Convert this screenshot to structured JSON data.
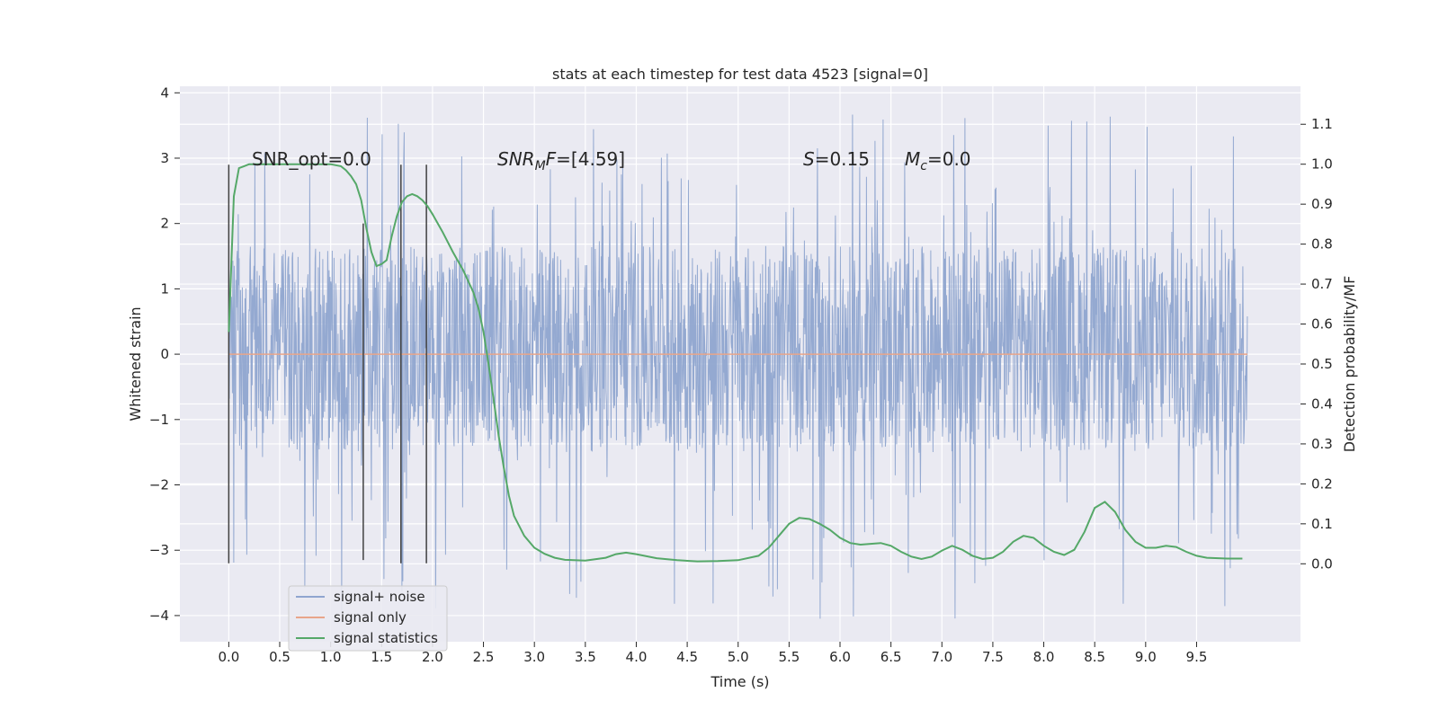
{
  "chart_data": {
    "type": "line",
    "title": "stats at each timestep for test data 4523 [signal=0]",
    "xlabel": "Time (s)",
    "ylabel": "Whitened strain",
    "y2label": "Detection probability/MF",
    "xlim": [
      -0.48,
      10.52
    ],
    "ylim": [
      -4.4,
      4.1
    ],
    "y2lim": [
      -0.195,
      1.195
    ],
    "x_ticks": [
      0.0,
      0.5,
      1.0,
      1.5,
      2.0,
      2.5,
      3.0,
      3.5,
      4.0,
      4.5,
      5.0,
      5.5,
      6.0,
      6.5,
      7.0,
      7.5,
      8.0,
      8.5,
      9.0,
      9.5
    ],
    "x_tick_labels": [
      "0.0",
      "0.5",
      "1.0",
      "1.5",
      "2.0",
      "2.5",
      "3.0",
      "3.5",
      "4.0",
      "4.5",
      "5.0",
      "5.5",
      "6.0",
      "6.5",
      "7.0",
      "7.5",
      "8.0",
      "8.5",
      "9.0",
      "9.5"
    ],
    "y_ticks": [
      -4,
      -3,
      -2,
      -1,
      0,
      1,
      2,
      3,
      4
    ],
    "y_tick_labels": [
      "−4",
      "−3",
      "−2",
      "−1",
      "0",
      "1",
      "2",
      "3",
      "4"
    ],
    "y2_ticks": [
      0.0,
      0.1,
      0.2,
      0.3,
      0.4,
      0.5,
      0.6,
      0.7,
      0.8,
      0.9,
      1.0,
      1.1
    ],
    "y2_tick_labels": [
      "0.0",
      "0.1",
      "0.2",
      "0.3",
      "0.4",
      "0.5",
      "0.6",
      "0.7",
      "0.8",
      "0.9",
      "1.0",
      "1.1"
    ],
    "grid": true,
    "legend_position": "lower-left",
    "noise": {
      "x_range": [
        0.0,
        10.0
      ],
      "band_low": -1.5,
      "band_high": 1.65,
      "spike_max": 3.7,
      "spike_min": -4.05
    },
    "series": [
      {
        "name": "signal+ noise",
        "axis": "left",
        "color": "#8fa5cf",
        "data": "whitened strain noise samples over 0.0 to 10.0 s"
      },
      {
        "name": "signal only",
        "axis": "left",
        "color": "#e8a58a",
        "x": [
          0.0,
          10.0
        ],
        "y": [
          0.0,
          0.0
        ]
      },
      {
        "name": "signal statistics",
        "axis": "right",
        "color": "#55a868",
        "x": [
          0.0,
          0.05,
          0.1,
          0.15,
          0.2,
          0.3,
          0.4,
          0.5,
          0.6,
          0.7,
          0.8,
          0.9,
          1.0,
          1.1,
          1.15,
          1.2,
          1.25,
          1.3,
          1.35,
          1.4,
          1.45,
          1.5,
          1.55,
          1.6,
          1.65,
          1.7,
          1.75,
          1.8,
          1.85,
          1.9,
          1.95,
          2.0,
          2.1,
          2.2,
          2.3,
          2.4,
          2.45,
          2.5,
          2.55,
          2.6,
          2.65,
          2.7,
          2.75,
          2.8,
          2.9,
          3.0,
          3.1,
          3.2,
          3.3,
          3.5,
          3.7,
          3.8,
          3.9,
          4.0,
          4.2,
          4.4,
          4.6,
          4.8,
          5.0,
          5.2,
          5.3,
          5.4,
          5.5,
          5.6,
          5.7,
          5.8,
          5.9,
          6.0,
          6.1,
          6.2,
          6.3,
          6.4,
          6.5,
          6.6,
          6.7,
          6.8,
          6.9,
          7.0,
          7.1,
          7.2,
          7.3,
          7.4,
          7.5,
          7.6,
          7.7,
          7.8,
          7.9,
          8.0,
          8.1,
          8.2,
          8.3,
          8.4,
          8.5,
          8.6,
          8.7,
          8.8,
          8.9,
          9.0,
          9.1,
          9.2,
          9.3,
          9.4,
          9.5,
          9.6,
          9.8,
          9.95
        ],
        "y": [
          0.58,
          0.92,
          0.99,
          0.995,
          1.0,
          1.0,
          1.0,
          1.0,
          1.0,
          1.0,
          1.0,
          1.0,
          1.0,
          0.995,
          0.985,
          0.97,
          0.95,
          0.91,
          0.84,
          0.78,
          0.745,
          0.75,
          0.76,
          0.82,
          0.87,
          0.905,
          0.92,
          0.925,
          0.92,
          0.91,
          0.895,
          0.875,
          0.83,
          0.78,
          0.735,
          0.68,
          0.64,
          0.58,
          0.5,
          0.41,
          0.32,
          0.24,
          0.17,
          0.12,
          0.07,
          0.04,
          0.025,
          0.015,
          0.01,
          0.008,
          0.015,
          0.024,
          0.028,
          0.024,
          0.014,
          0.009,
          0.006,
          0.007,
          0.009,
          0.02,
          0.04,
          0.07,
          0.1,
          0.115,
          0.112,
          0.1,
          0.085,
          0.065,
          0.052,
          0.048,
          0.05,
          0.052,
          0.045,
          0.03,
          0.018,
          0.012,
          0.018,
          0.033,
          0.045,
          0.035,
          0.02,
          0.012,
          0.015,
          0.03,
          0.055,
          0.07,
          0.065,
          0.045,
          0.03,
          0.022,
          0.035,
          0.08,
          0.14,
          0.155,
          0.13,
          0.085,
          0.055,
          0.04,
          0.04,
          0.045,
          0.042,
          0.03,
          0.02,
          0.015,
          0.013,
          0.013
        ]
      }
    ],
    "vlines": {
      "color": "#404040",
      "lines": [
        {
          "x": 0.0,
          "ymin": -3.2,
          "ymax": 2.9
        },
        {
          "x": 1.32,
          "ymin": -3.15,
          "ymax": 2.0
        },
        {
          "x": 1.69,
          "ymin": -3.2,
          "ymax": 2.9
        },
        {
          "x": 1.94,
          "ymin": -3.2,
          "ymax": 2.9
        }
      ]
    },
    "annotations": {
      "snr_opt": "SNR_opt=0.0",
      "snr_mf_value": "F=[4.59]",
      "s_value": "=0.15",
      "mc_value": "=0.0"
    }
  }
}
